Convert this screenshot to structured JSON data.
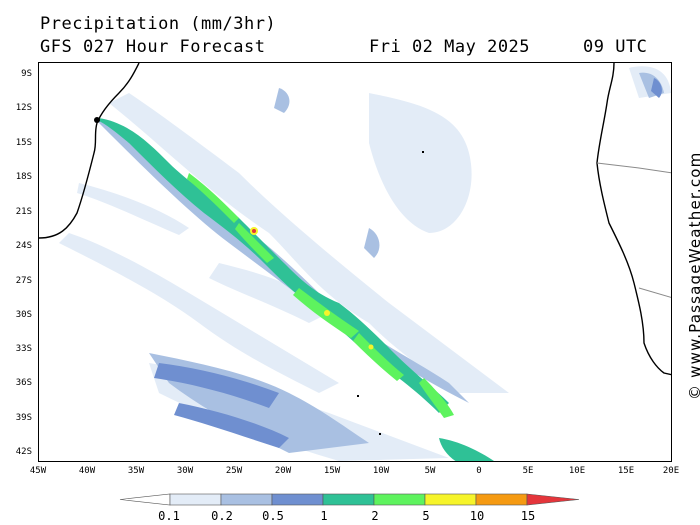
{
  "header": {
    "title": "Precipitation (mm/3hr)",
    "forecast": "GFS 027 Hour Forecast",
    "date": "Fri 02 May 2025",
    "time": "09 UTC"
  },
  "credit": "© www.PassageWeather.com",
  "axes": {
    "latitude_labels": [
      "9S",
      "12S",
      "15S",
      "18S",
      "21S",
      "24S",
      "27S",
      "30S",
      "33S",
      "36S",
      "39S",
      "42S"
    ],
    "longitude_labels": [
      "45W",
      "40W",
      "35W",
      "30W",
      "25W",
      "20W",
      "15W",
      "10W",
      "5W",
      "0",
      "5E",
      "10E",
      "15E",
      "20E"
    ]
  },
  "colorbar": {
    "levels": [
      "0.1",
      "0.2",
      "0.5",
      "1",
      "2",
      "5",
      "10",
      "15"
    ],
    "colors": [
      "#ffffff",
      "#e3ecf7",
      "#a9c0e2",
      "#6f8fd0",
      "#2fc196",
      "#5ef35e",
      "#f6f42a",
      "#f59a12",
      "#e4353b"
    ]
  },
  "map": {
    "ocean": "#ffffff",
    "coastline": "#000000",
    "border": "#8a8a8a"
  }
}
